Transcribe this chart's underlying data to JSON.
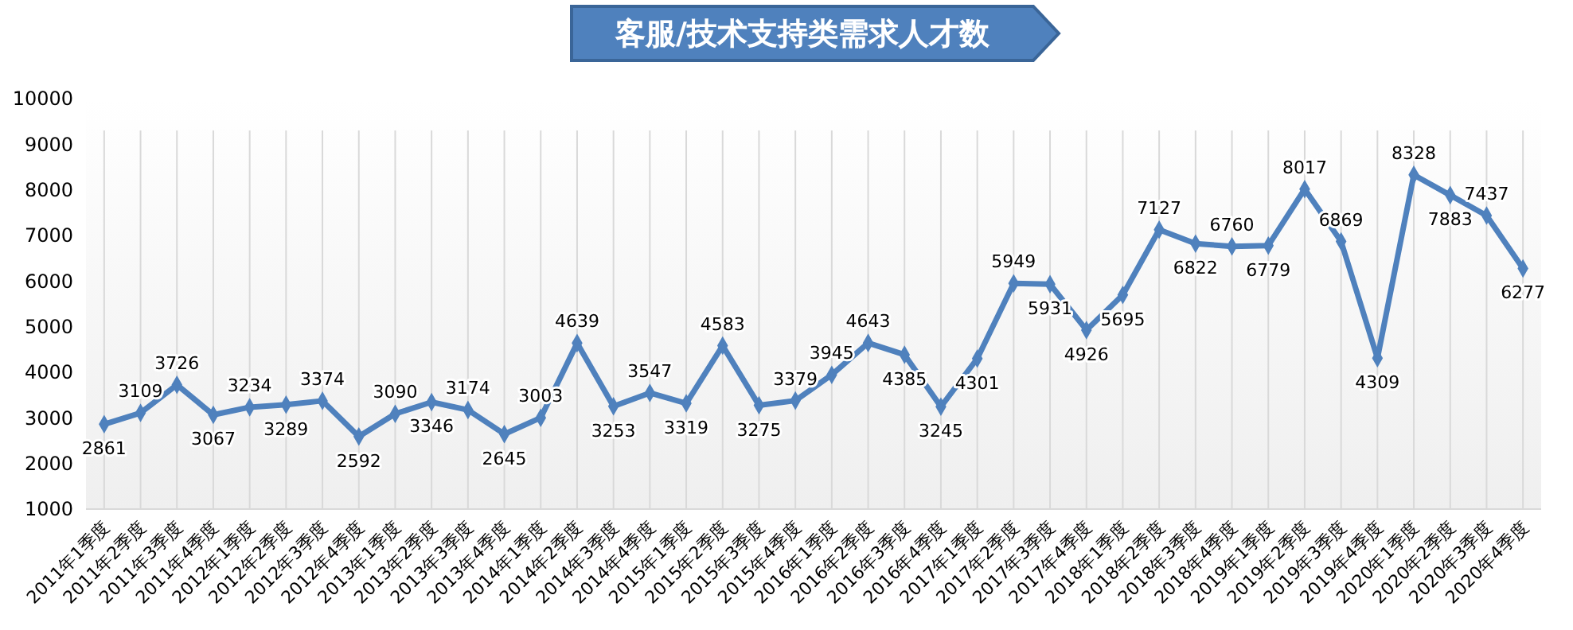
{
  "chart_data": {
    "type": "line",
    "title": "客服/技术支持类需求人才数",
    "categories": [
      "2011年1季度",
      "2011年2季度",
      "2011年3季度",
      "2011年4季度",
      "2012年1季度",
      "2012年2季度",
      "2012年3季度",
      "2012年4季度",
      "2013年1季度",
      "2013年2季度",
      "2013年3季度",
      "2013年4季度",
      "2014年1季度",
      "2014年2季度",
      "2014年3季度",
      "2014年4季度",
      "2015年1季度",
      "2015年2季度",
      "2015年3季度",
      "2015年4季度",
      "2016年1季度",
      "2016年2季度",
      "2016年3季度",
      "2016年4季度",
      "2017年1季度",
      "2017年2季度",
      "2017年3季度",
      "2017年4季度",
      "2018年1季度",
      "2018年2季度",
      "2018年3季度",
      "2018年4季度",
      "2019年1季度",
      "2019年2季度",
      "2019年3季度",
      "2019年4季度",
      "2020年1季度",
      "2020年2季度",
      "2020年3季度",
      "2020年4季度"
    ],
    "series": [
      {
        "color": "#4f81bd",
        "values": [
          2861,
          3109,
          3726,
          3067,
          3234,
          3289,
          3374,
          2592,
          3090,
          3346,
          3174,
          2645,
          3003,
          4639,
          3253,
          3547,
          3319,
          4583,
          3275,
          3379,
          3945,
          4643,
          4385,
          3245,
          4301,
          5949,
          5931,
          4926,
          5695,
          7127,
          6822,
          6760,
          6779,
          8017,
          6869,
          4309,
          8328,
          7883,
          7437,
          6277
        ]
      }
    ],
    "ylim": [
      1000,
      10000
    ],
    "yticks": [
      1000,
      2000,
      3000,
      4000,
      5000,
      6000,
      7000,
      8000,
      9000,
      10000
    ],
    "grid": "x",
    "marker": "diamond",
    "line_style": "solid",
    "data_labels": true
  }
}
